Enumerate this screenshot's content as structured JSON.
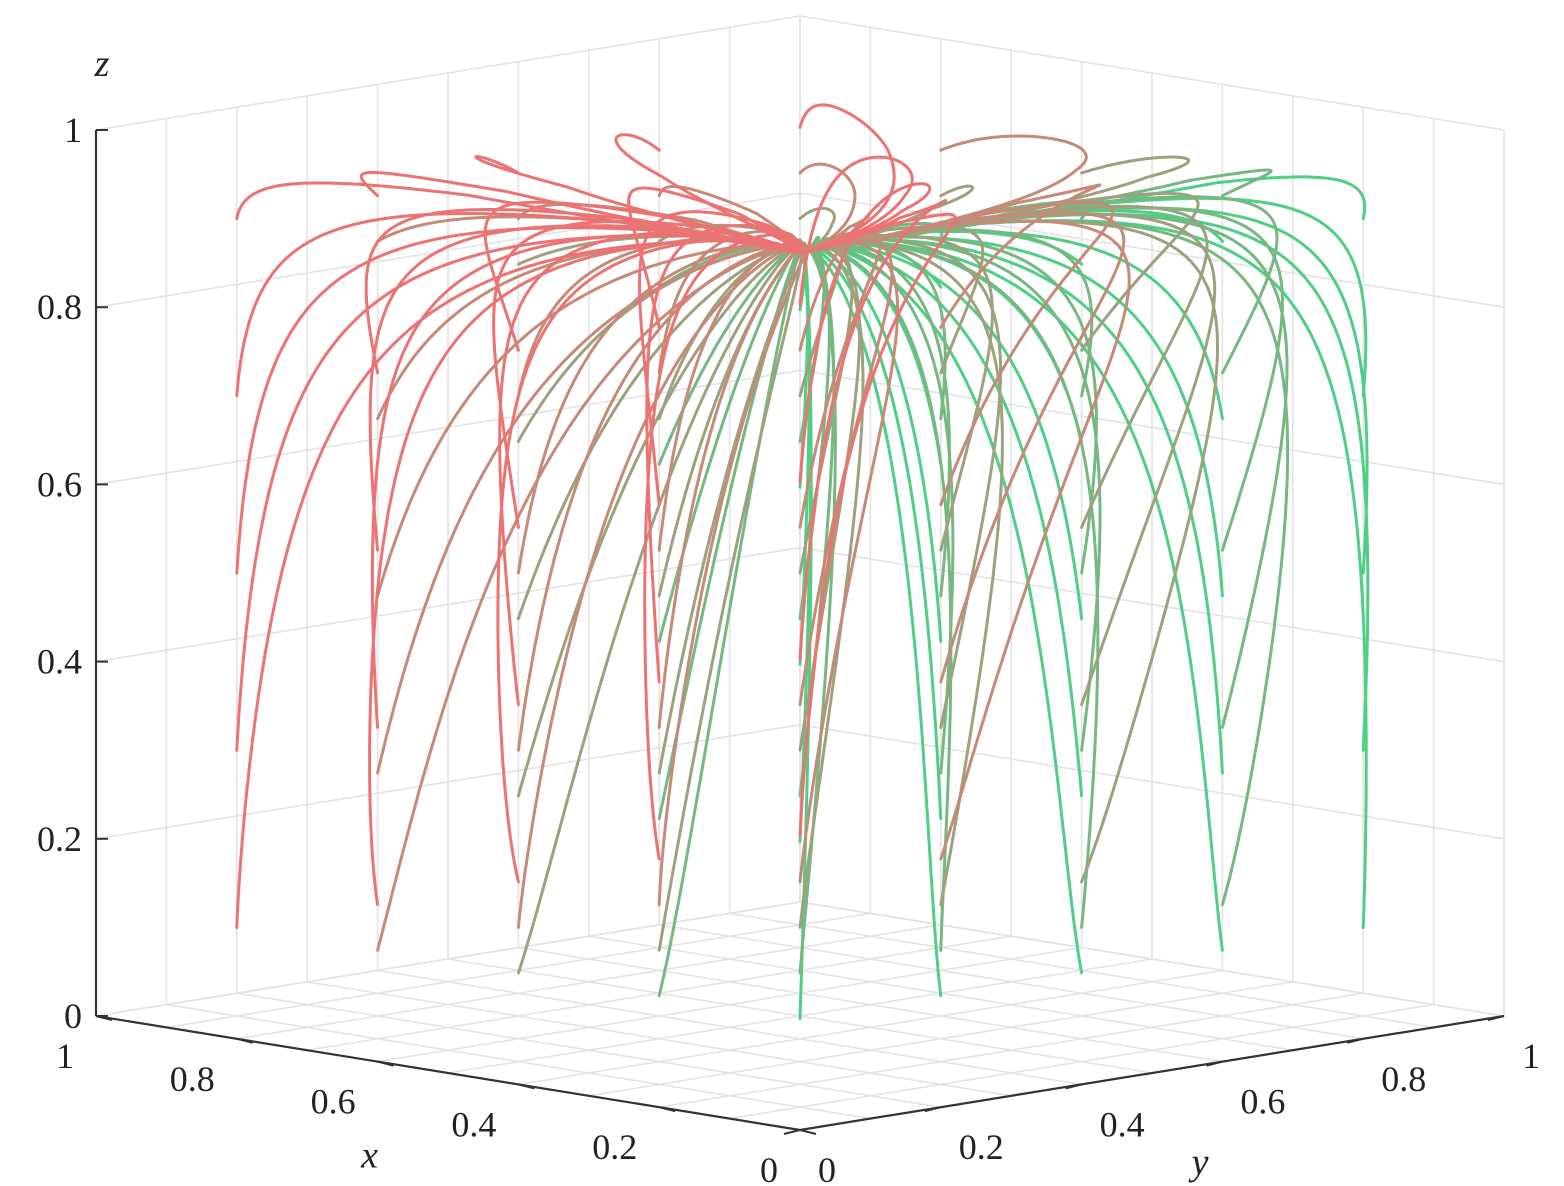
{
  "chart_data": {
    "type": "line",
    "subtype": "3d-trajectories",
    "title": "",
    "xlabel": "x",
    "ylabel": "y",
    "zlabel": "z",
    "xlim": [
      0,
      1
    ],
    "ylim": [
      0,
      1
    ],
    "zlim": [
      0,
      1
    ],
    "xticks": [
      "0",
      "0.2",
      "0.4",
      "0.6",
      "0.8",
      "1"
    ],
    "yticks": [
      "0",
      "0.2",
      "0.4",
      "0.6",
      "0.8",
      "1"
    ],
    "zticks": [
      "0",
      "0.2",
      "0.4",
      "0.6",
      "0.8",
      "1"
    ],
    "grid": true,
    "view": "3d-box",
    "initial_x_values": [
      0.1,
      0.3,
      0.5,
      0.7,
      0.9
    ],
    "initial_y_values": [
      0.1,
      0.3,
      0.5,
      0.7,
      0.9
    ],
    "initial_z_values": [
      0.1,
      0.3,
      0.5,
      0.7,
      0.9
    ],
    "convergence_point": {
      "x": 0.0,
      "y": 0.0,
      "z": 0.9
    },
    "colors": {
      "low_x": "#4fcf86",
      "high_x": "#ec7373",
      "axis": "#333333",
      "grid": "#e3e3e3"
    }
  }
}
